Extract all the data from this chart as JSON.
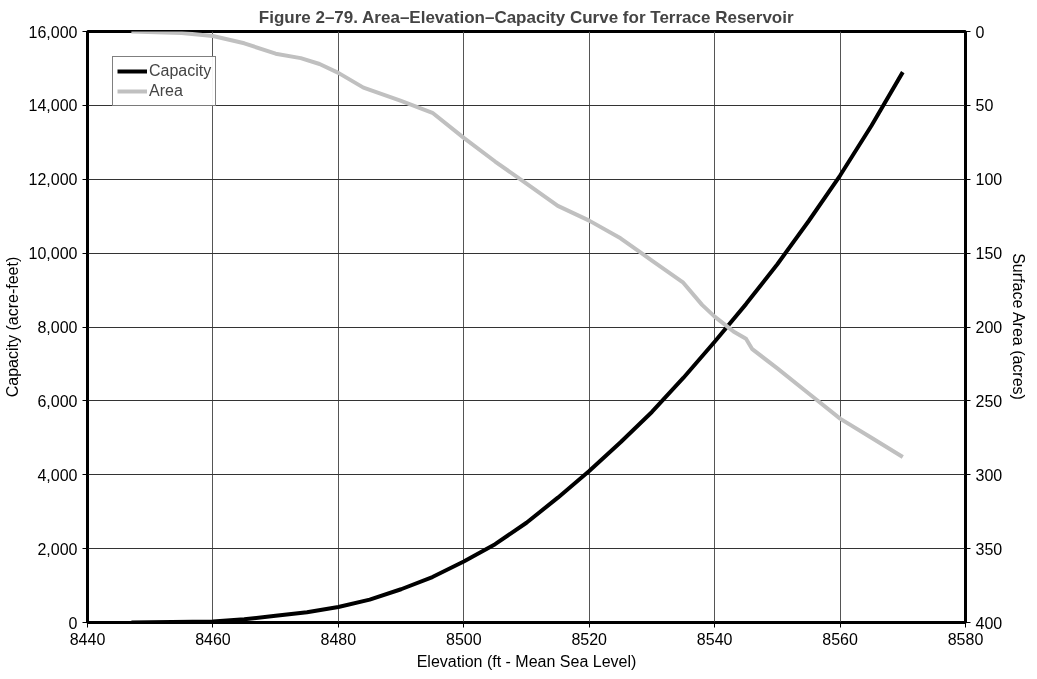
{
  "chart_data": {
    "type": "line",
    "title": "Figure 2–79. Area–Elevation–Capacity Curve for Terrace Reservoir",
    "xlabel": "Elevation (ft - Mean Sea Level)",
    "ylabel": "Capacity (acre-feet)",
    "y2label": "Surface Area (acres)",
    "xlim": [
      8440,
      8580
    ],
    "xticks": [
      8440,
      8460,
      8480,
      8500,
      8520,
      8540,
      8560,
      8580
    ],
    "ylim": [
      0,
      16000
    ],
    "yticks": [
      {
        "value": 0,
        "label": "0"
      },
      {
        "value": 2000,
        "label": "2,000"
      },
      {
        "value": 4000,
        "label": "4,000"
      },
      {
        "value": 6000,
        "label": "6,000"
      },
      {
        "value": 8000,
        "label": "8,000"
      },
      {
        "value": 10000,
        "label": "10,000"
      },
      {
        "value": 12000,
        "label": "12,000"
      },
      {
        "value": 14000,
        "label": "14,000"
      },
      {
        "value": 16000,
        "label": "16,000"
      }
    ],
    "y2lim": [
      400,
      0
    ],
    "y2ticks": [
      0,
      50,
      100,
      150,
      200,
      250,
      300,
      350,
      400
    ],
    "grid": true,
    "legend": "top left",
    "marker": "none",
    "line_style": "solid",
    "series": [
      {
        "name": "Capacity",
        "color": "#000000",
        "x": [
          8447,
          8460,
          8465,
          8470,
          8475,
          8480,
          8485,
          8490,
          8495,
          8500,
          8505,
          8510,
          8515,
          8520,
          8525,
          8530,
          8535,
          8540,
          8545,
          8550,
          8555,
          8560,
          8565,
          8570
        ],
        "values": [
          0,
          30,
          90,
          180,
          280,
          420,
          620,
          900,
          1230,
          1650,
          2120,
          2700,
          3380,
          4100,
          4880,
          5700,
          6620,
          7600,
          8620,
          9700,
          10870,
          12100,
          13450,
          14900
        ]
      },
      {
        "name": "Area",
        "color": "#c0c0c0",
        "axis": "y2",
        "x": [
          8447,
          8455,
          8460,
          8465,
          8470,
          8474,
          8477,
          8480,
          8484,
          8490,
          8495,
          8500,
          8505,
          8510,
          8515,
          8520,
          8525,
          8530,
          8535,
          8538,
          8540,
          8543,
          8545,
          8546,
          8550,
          8555,
          8560,
          8565,
          8570
        ],
        "values": [
          0,
          1,
          3,
          8,
          15,
          18,
          22,
          28,
          38,
          47,
          55,
          72,
          88,
          103,
          118,
          128,
          140,
          155,
          170,
          185,
          193,
          203,
          208,
          215,
          228,
          245,
          262,
          275,
          288
        ]
      }
    ]
  }
}
